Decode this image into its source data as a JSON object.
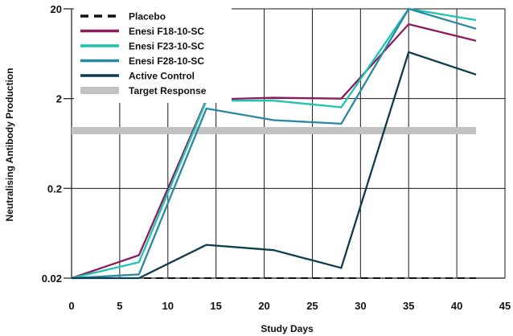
{
  "chart_data": {
    "type": "line",
    "xlabel": "Study Days",
    "ylabel": "Neutralising Antibody Production",
    "xlim": [
      0,
      45
    ],
    "ylim": [
      0.02,
      20
    ],
    "yscale": "log",
    "grid": true,
    "legend_position": "top-left",
    "x_ticks": [
      0,
      5,
      10,
      15,
      20,
      25,
      30,
      35,
      40,
      45
    ],
    "x_tick_labels": [
      "0",
      "5",
      "10",
      "15",
      "20",
      "25",
      "30",
      "35",
      "40",
      "45"
    ],
    "y_ticks": [
      0.02,
      0.2,
      2,
      20
    ],
    "y_tick_labels": [
      "0.02",
      "0.2",
      "2",
      "20"
    ],
    "series": [
      {
        "name": "Placebo",
        "color": "#111111",
        "style": "dashed",
        "x": [
          0,
          42
        ],
        "y": [
          0.02,
          0.02
        ]
      },
      {
        "name": "Enesi F18-10-SC",
        "color": "#8b1d5e",
        "style": "solid",
        "x": [
          0,
          7,
          14,
          21,
          28,
          35,
          42
        ],
        "y": [
          0.02,
          0.036,
          1.95,
          2.05,
          2.0,
          13.5,
          8.8
        ]
      },
      {
        "name": "Enesi F23-10-SC",
        "color": "#1fc4b0",
        "style": "solid",
        "x": [
          0,
          7,
          14,
          21,
          28,
          35,
          42
        ],
        "y": [
          0.02,
          0.03,
          1.9,
          1.9,
          1.6,
          20,
          15
        ]
      },
      {
        "name": "Enesi F28-10-SC",
        "color": "#2a88a3",
        "style": "solid",
        "x": [
          0,
          7,
          14,
          21,
          28,
          35,
          42
        ],
        "y": [
          0.02,
          0.022,
          1.55,
          1.15,
          1.05,
          20,
          12
        ]
      },
      {
        "name": "Active Control",
        "color": "#0e3b4e",
        "style": "solid",
        "x": [
          0,
          7,
          14,
          21,
          28,
          35,
          42
        ],
        "y": [
          0.02,
          0.02,
          0.047,
          0.041,
          0.026,
          6.6,
          3.7
        ]
      },
      {
        "name": "Target Response",
        "color": "#c2c2c2",
        "style": "band",
        "x": [
          0,
          42
        ],
        "y": [
          0.88,
          0.88
        ]
      }
    ]
  }
}
